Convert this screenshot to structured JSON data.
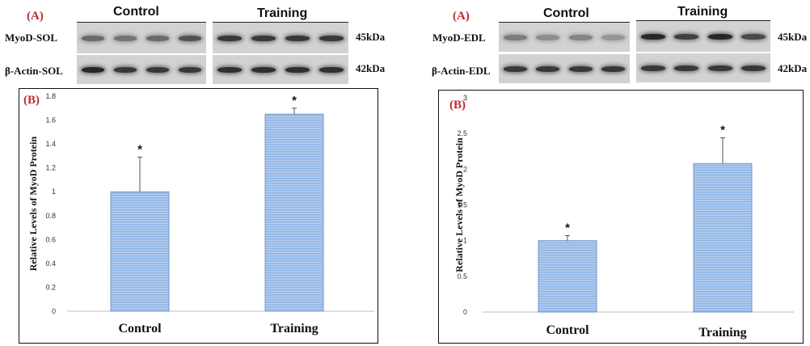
{
  "panels": [
    {
      "id": "sol",
      "blot": {
        "tag": "(A)",
        "group_labels": [
          "Control",
          "Training"
        ],
        "rows": [
          {
            "label": "MyoD-SOL",
            "kda": "45kDa",
            "control_intensity": [
              0.55,
              0.5,
              0.55,
              0.7
            ],
            "training_intensity": [
              0.85,
              0.85,
              0.85,
              0.85
            ]
          },
          {
            "label": "β-Actin-SOL",
            "kda": "42kDa",
            "control_intensity": [
              0.95,
              0.85,
              0.85,
              0.85
            ],
            "training_intensity": [
              0.9,
              0.9,
              0.9,
              0.9
            ]
          }
        ]
      },
      "chart_data": {
        "type": "bar",
        "tag": "(B)",
        "title": "",
        "xlabel": "",
        "ylabel": "Relative Levels of MyoD Protein",
        "categories": [
          "Control",
          "Training"
        ],
        "values": [
          1.0,
          1.65
        ],
        "errors": [
          0.29,
          0.05
        ],
        "annotations": [
          "*",
          "*"
        ],
        "ylim": [
          0,
          1.8
        ],
        "yticks": [
          0,
          0.2,
          0.4,
          0.6,
          0.8,
          1,
          1.2,
          1.4,
          1.6,
          1.8
        ],
        "ytick_labels": [
          "0",
          "0.2",
          "0.4",
          "0.6",
          "0.8",
          "1",
          "1.2",
          "1.4",
          "1.6",
          "1.8"
        ],
        "grid": false,
        "bar_color": "#8fb4e3"
      }
    },
    {
      "id": "edl",
      "blot": {
        "tag": "(A)",
        "group_labels": [
          "Control",
          "Training"
        ],
        "rows": [
          {
            "label": "MyoD-EDL",
            "kda": "45kDa",
            "control_intensity": [
              0.45,
              0.35,
              0.4,
              0.3
            ],
            "training_intensity": [
              0.95,
              0.8,
              0.95,
              0.75
            ]
          },
          {
            "label": "β-Actin-EDL",
            "kda": "42kDa",
            "control_intensity": [
              0.85,
              0.85,
              0.85,
              0.85
            ],
            "training_intensity": [
              0.85,
              0.85,
              0.85,
              0.85
            ]
          }
        ]
      },
      "chart_data": {
        "type": "bar",
        "tag": "(B)",
        "title": "",
        "xlabel": "",
        "ylabel": "Relative Levels of MyoD Protein",
        "categories": [
          "Control",
          "Training"
        ],
        "values": [
          1.0,
          2.08
        ],
        "errors": [
          0.07,
          0.36
        ],
        "annotations": [
          "*",
          "*"
        ],
        "ylim": [
          0,
          3
        ],
        "yticks": [
          0,
          0.5,
          1,
          1.5,
          2,
          2.5,
          3
        ],
        "ytick_labels": [
          "0",
          "0.5",
          "1",
          "1.5",
          "2",
          "2.5",
          "3"
        ],
        "grid": false,
        "bar_color": "#8fb4e3"
      }
    }
  ]
}
